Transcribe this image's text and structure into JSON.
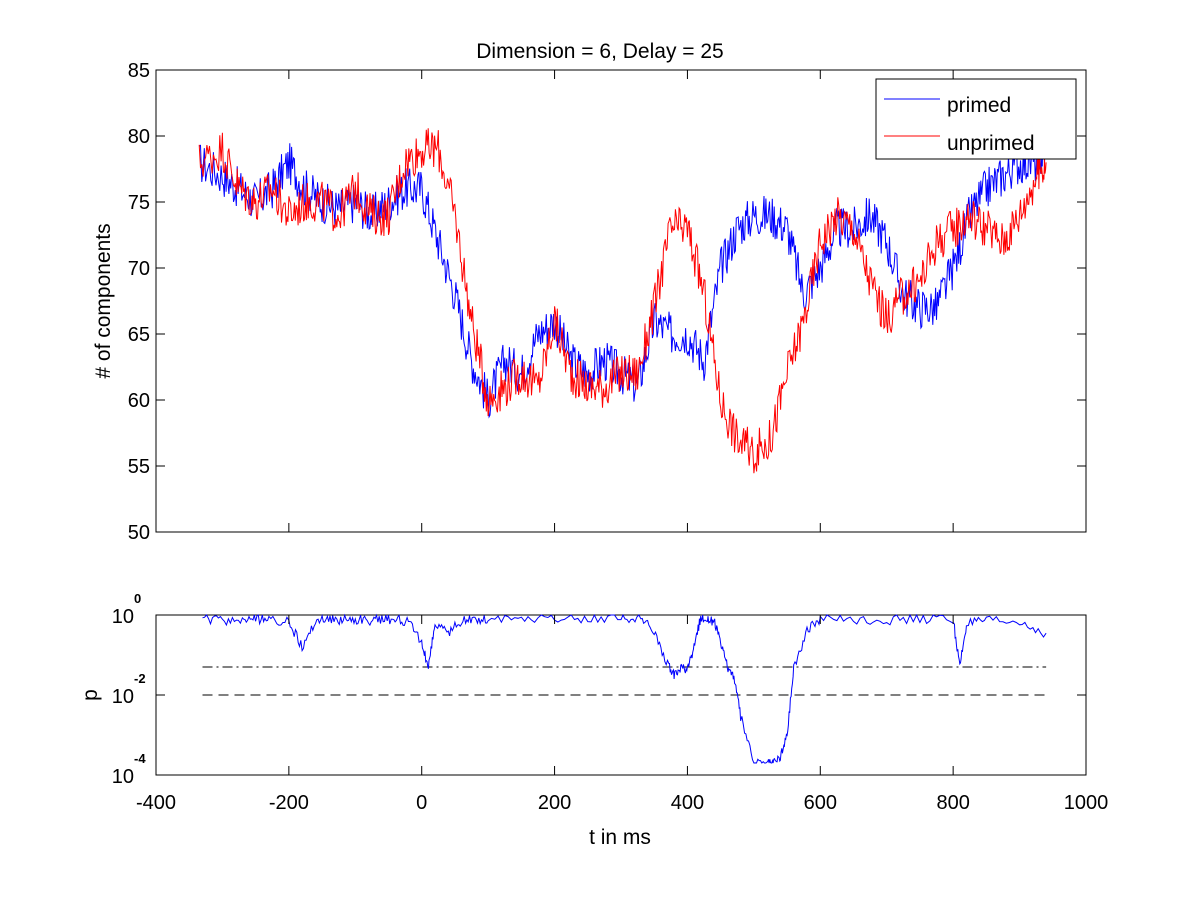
{
  "chart_data": [
    {
      "type": "line",
      "title": "Dimension  = 6, Delay = 25",
      "xlabel": "",
      "ylabel": "# of components",
      "xlim": [
        -400,
        1000
      ],
      "ylim": [
        50,
        85
      ],
      "y_ticks": [
        50,
        55,
        60,
        65,
        70,
        75,
        80,
        85
      ],
      "x_tick_labels_shown": false,
      "legend": {
        "position": "top-right",
        "entries": [
          "primed",
          "unprimed"
        ]
      },
      "grid": false,
      "series": [
        {
          "name": "primed",
          "color": "#0000ff",
          "x": [
            -335,
            -300,
            -275,
            -250,
            -225,
            -200,
            -175,
            -150,
            -125,
            -100,
            -75,
            -50,
            -25,
            0,
            25,
            50,
            75,
            100,
            125,
            150,
            175,
            200,
            225,
            250,
            275,
            300,
            325,
            350,
            375,
            400,
            425,
            450,
            475,
            500,
            525,
            550,
            575,
            600,
            625,
            650,
            675,
            700,
            725,
            750,
            775,
            800,
            825,
            850,
            875,
            900,
            925,
            940
          ],
          "y": [
            78,
            77,
            76,
            75,
            76,
            78,
            76,
            75,
            74.5,
            75,
            74,
            75,
            76,
            76,
            72,
            68,
            63,
            60,
            63,
            62,
            65,
            66,
            63,
            62,
            63,
            62,
            61,
            66,
            65,
            65,
            63,
            70,
            73,
            74,
            74,
            73,
            68,
            70,
            73,
            73,
            74,
            72,
            68,
            67,
            67,
            70,
            74,
            76,
            77,
            78,
            78,
            79
          ]
        },
        {
          "name": "unprimed",
          "color": "#ff0000",
          "x": [
            -335,
            -300,
            -275,
            -250,
            -225,
            -200,
            -175,
            -150,
            -125,
            -100,
            -75,
            -50,
            -25,
            0,
            25,
            50,
            75,
            100,
            125,
            150,
            175,
            200,
            225,
            250,
            275,
            300,
            325,
            350,
            375,
            400,
            425,
            450,
            475,
            500,
            525,
            550,
            575,
            600,
            625,
            650,
            675,
            700,
            725,
            750,
            775,
            800,
            825,
            850,
            875,
            900,
            925,
            940
          ],
          "y": [
            78,
            79,
            76,
            75,
            76,
            74,
            75,
            75,
            74,
            76,
            74,
            74,
            78,
            79,
            79,
            74,
            66,
            60,
            61,
            62,
            61,
            66,
            62,
            61,
            61,
            62,
            62,
            67,
            73,
            73,
            68,
            60,
            57,
            56,
            57,
            62,
            66,
            72,
            74,
            73,
            69,
            66,
            68,
            69,
            72,
            73,
            74,
            73,
            72,
            74,
            77,
            78
          ]
        }
      ]
    },
    {
      "type": "line",
      "title": "",
      "xlabel": "t in ms",
      "ylabel": "p",
      "xlim": [
        -400,
        1000
      ],
      "x_ticks": [
        -400,
        -200,
        0,
        200,
        400,
        600,
        800,
        1000
      ],
      "ylim": [
        0.0001,
        1
      ],
      "y_scale": "log",
      "y_ticks": [
        {
          "base": "10",
          "exp": "0",
          "value": 1
        },
        {
          "base": "10",
          "exp": "-2",
          "value": 0.01
        },
        {
          "base": "10",
          "exp": "-4",
          "value": 0.0001
        }
      ],
      "grid": false,
      "series": [
        {
          "name": "",
          "color": "#0000ff",
          "x": [
            -330,
            -300,
            -270,
            -250,
            -230,
            -200,
            -180,
            -160,
            -140,
            -120,
            -100,
            -80,
            -60,
            -40,
            -20,
            0,
            10,
            20,
            40,
            60,
            80,
            100,
            150,
            200,
            250,
            300,
            330,
            350,
            370,
            380,
            390,
            400,
            410,
            420,
            430,
            440,
            450,
            460,
            470,
            480,
            500,
            520,
            530,
            540,
            550,
            560,
            580,
            600,
            650,
            700,
            750,
            800,
            810,
            820,
            850,
            900,
            940
          ],
          "y": [
            0.8,
            0.7,
            0.75,
            0.8,
            0.75,
            0.7,
            0.15,
            0.7,
            0.8,
            0.75,
            0.8,
            0.7,
            0.8,
            0.75,
            0.7,
            0.2,
            0.05,
            0.6,
            0.35,
            0.7,
            0.75,
            0.8,
            0.8,
            0.85,
            0.8,
            0.85,
            0.8,
            0.4,
            0.06,
            0.03,
            0.05,
            0.04,
            0.15,
            0.9,
            0.8,
            0.7,
            0.2,
            0.05,
            0.03,
            0.003,
            0.0002,
            0.0002,
            0.0002,
            0.0003,
            0.001,
            0.05,
            0.4,
            0.8,
            0.8,
            0.75,
            0.8,
            0.8,
            0.05,
            0.6,
            0.7,
            0.65,
            0.35
          ]
        }
      ],
      "reference_lines": [
        {
          "style": "dash-dot",
          "value": 0.05,
          "x_range": [
            -330,
            940
          ]
        },
        {
          "style": "dashed",
          "value": 0.01,
          "x_range": [
            -330,
            940
          ]
        }
      ]
    }
  ]
}
